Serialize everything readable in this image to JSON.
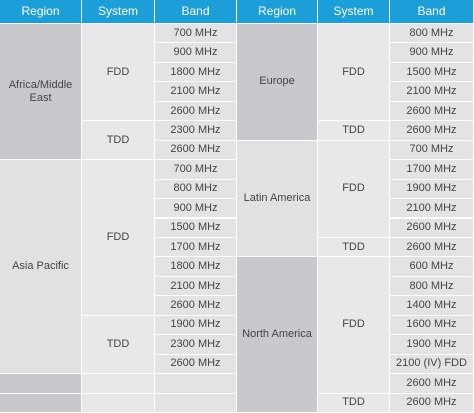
{
  "header": [
    "Region",
    "System",
    "Band",
    "Region",
    "System",
    "Band"
  ],
  "left": [
    {
      "region": "Africa/Middle East",
      "systems": [
        {
          "system": "FDD",
          "bands": [
            "700 MHz",
            "900 MHz",
            "1800 MHz",
            "2100 MHz",
            "2600 MHz"
          ]
        },
        {
          "system": "TDD",
          "bands": [
            "2300 MHz",
            "2600 MHz"
          ]
        }
      ]
    },
    {
      "region": "Asia Pacific",
      "systems": [
        {
          "system": "FDD",
          "bands": [
            "700 MHz",
            "800 MHz",
            "900 MHz",
            "1500 MHz",
            "1700 MHz",
            "1800 MHz",
            "2100 MHz",
            "2600 MHz"
          ]
        },
        {
          "system": "TDD",
          "bands": [
            "1900 MHz",
            "2300 MHz",
            "2600 MHz"
          ]
        }
      ]
    }
  ],
  "right": [
    {
      "region": "Europe",
      "systems": [
        {
          "system": "FDD",
          "bands": [
            "800 MHz",
            "900 MHz",
            "1500 MHz",
            "2100 MHz",
            "2600 MHz"
          ]
        },
        {
          "system": "TDD",
          "bands": [
            "2600 MHz"
          ]
        }
      ]
    },
    {
      "region": "Latin America",
      "systems": [
        {
          "system": "FDD",
          "bands": [
            "700 MHz",
            "1700 MHz",
            "1900 MHz",
            "2100 MHz",
            "2600 MHz"
          ]
        },
        {
          "system": "TDD",
          "bands": [
            "2600 MHz"
          ]
        }
      ]
    },
    {
      "region": "North America",
      "systems": [
        {
          "system": "FDD",
          "bands": [
            "600 MHz",
            "800 MHz",
            "1400 MHz",
            "1600 MHz",
            "1900 MHz",
            "2100 (IV) FDD",
            "2600 MHz"
          ]
        },
        {
          "system": "TDD",
          "bands": [
            "2600 MHz"
          ]
        }
      ]
    }
  ]
}
